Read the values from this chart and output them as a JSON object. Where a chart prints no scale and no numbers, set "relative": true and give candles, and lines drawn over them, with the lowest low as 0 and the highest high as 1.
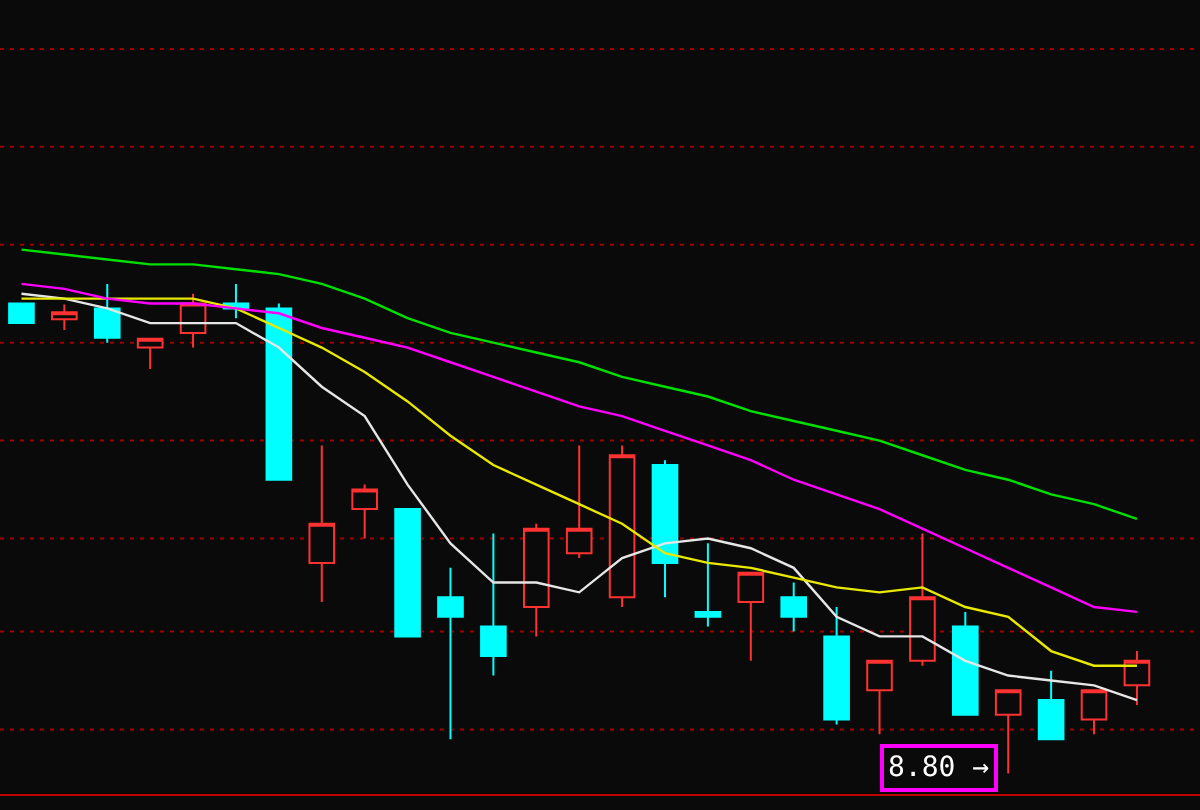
{
  "chart_data": {
    "type": "candlestick",
    "relative": true,
    "ref_lines": [
      {
        "axis": "y",
        "value": 0.09,
        "color": "#a00000",
        "line_style": "dotted"
      },
      {
        "axis": "y",
        "value": 0.29,
        "color": "#a00000",
        "line_style": "dotted"
      },
      {
        "axis": "y",
        "value": 0.48,
        "color": "#a00000",
        "line_style": "dotted"
      },
      {
        "axis": "y",
        "value": 0.68,
        "color": "#a00000",
        "line_style": "dotted"
      },
      {
        "axis": "y",
        "value": 0.88,
        "color": "#a00000",
        "line_style": "dotted"
      },
      {
        "axis": "y",
        "value": 1.08,
        "color": "#a00000",
        "line_style": "dotted"
      },
      {
        "axis": "y",
        "value": 1.28,
        "color": "#a00000",
        "line_style": "dotted"
      },
      {
        "axis": "y",
        "value": 1.48,
        "color": "#a00000",
        "line_style": "dotted"
      }
    ],
    "categories": [
      null,
      null,
      null,
      null,
      null,
      null,
      null,
      null,
      null,
      null,
      null,
      null,
      null,
      null,
      null,
      null,
      null,
      null,
      null,
      null,
      null,
      null,
      null,
      null,
      null,
      null,
      null
    ],
    "ohlc": [
      [
        0.96,
        0.96,
        0.92,
        0.92
      ],
      [
        0.928,
        0.958,
        0.906,
        0.942
      ],
      [
        0.95,
        1.0,
        0.88,
        0.89
      ],
      [
        0.87,
        0.888,
        0.826,
        0.888
      ],
      [
        0.9,
        0.98,
        0.87,
        0.96
      ],
      [
        0.96,
        1.0,
        0.93,
        0.95
      ],
      [
        0.95,
        0.96,
        0.6,
        0.6
      ],
      [
        0.43,
        0.67,
        0.35,
        0.51
      ],
      [
        0.54,
        0.59,
        0.48,
        0.58
      ],
      [
        0.54,
        0.54,
        0.28,
        0.28
      ],
      [
        0.36,
        0.42,
        0.07,
        0.32
      ],
      [
        0.3,
        0.49,
        0.2,
        0.24
      ],
      [
        0.34,
        0.51,
        0.28,
        0.5
      ],
      [
        0.45,
        0.67,
        0.44,
        0.5
      ],
      [
        0.36,
        0.67,
        0.34,
        0.65
      ],
      [
        0.63,
        0.64,
        0.36,
        0.43
      ],
      [
        0.33,
        0.47,
        0.3,
        0.32
      ],
      [
        0.35,
        0.41,
        0.23,
        0.41
      ],
      [
        0.36,
        0.39,
        0.29,
        0.32
      ],
      [
        0.28,
        0.34,
        0.1,
        0.11
      ],
      [
        0.17,
        0.23,
        0.08,
        0.23
      ],
      [
        0.23,
        0.49,
        0.22,
        0.36
      ],
      [
        0.3,
        0.33,
        0.12,
        0.12
      ],
      [
        0.12,
        0.17,
        0.0,
        0.17
      ],
      [
        0.15,
        0.21,
        0.07,
        0.07
      ],
      [
        0.11,
        0.17,
        0.08,
        0.17
      ],
      [
        0.18,
        0.25,
        0.14,
        0.23
      ]
    ],
    "colors": [
      "#00ffff",
      "#ff3232",
      "#00ffff",
      "#ff3232",
      "#ff3232",
      "#00ffff",
      "#00ffff",
      "#ff3232",
      "#ff3232",
      "#00ffff",
      "#00ffff",
      "#00ffff",
      "#ff3232",
      "#ff3232",
      "#ff3232",
      "#00ffff",
      "#00ffff",
      "#ff3232",
      "#00ffff",
      "#00ffff",
      "#ff3232",
      "#ff3232",
      "#00ffff",
      "#ff3232",
      "#00ffff",
      "#ff3232",
      "#ff3232"
    ],
    "series": [
      {
        "type": "line",
        "color": "#e6e6e6",
        "values": [
          0.98,
          0.97,
          0.95,
          0.92,
          0.92,
          0.92,
          0.87,
          0.79,
          0.73,
          0.59,
          0.47,
          0.39,
          0.39,
          0.37,
          0.44,
          0.47,
          0.48,
          0.46,
          0.42,
          0.32,
          0.28,
          0.28,
          0.23,
          0.2,
          0.19,
          0.18,
          0.15
        ]
      },
      {
        "type": "line",
        "color": "#e8e800",
        "values": [
          0.97,
          0.97,
          0.97,
          0.97,
          0.97,
          0.95,
          0.91,
          0.87,
          0.82,
          0.76,
          0.69,
          0.63,
          0.59,
          0.55,
          0.51,
          0.45,
          0.43,
          0.42,
          0.4,
          0.38,
          0.37,
          0.38,
          0.34,
          0.32,
          0.25,
          0.22,
          0.22
        ]
      },
      {
        "type": "line",
        "color": "#ff00ff",
        "values": [
          1.0,
          0.99,
          0.97,
          0.96,
          0.96,
          0.95,
          0.94,
          0.91,
          0.89,
          0.87,
          0.84,
          0.81,
          0.78,
          0.75,
          0.73,
          0.7,
          0.67,
          0.64,
          0.6,
          0.57,
          0.54,
          0.5,
          0.46,
          0.42,
          0.38,
          0.34,
          0.33
        ]
      },
      {
        "type": "line",
        "color": "#00e000",
        "values": [
          1.07,
          1.06,
          1.05,
          1.04,
          1.04,
          1.03,
          1.02,
          1.0,
          0.97,
          0.93,
          0.9,
          0.88,
          0.86,
          0.84,
          0.81,
          0.79,
          0.77,
          0.74,
          0.72,
          0.7,
          0.68,
          0.65,
          0.62,
          0.6,
          0.57,
          0.55,
          0.52
        ]
      }
    ],
    "annotations": [
      "8.80 →"
    ]
  }
}
